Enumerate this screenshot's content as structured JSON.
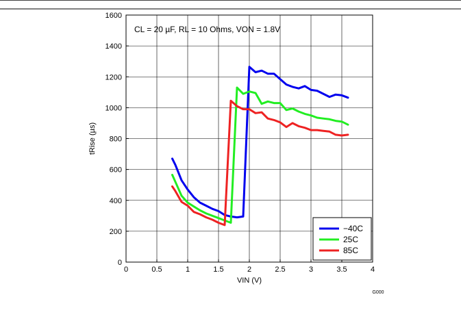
{
  "chart_data": {
    "type": "line",
    "title": "",
    "annotation": "CL = 20 µF, RL = 10 Ohms, VON = 1.8V",
    "xlabel": "VIN (V)",
    "ylabel": "tRise (µs)",
    "xlim": [
      0,
      4
    ],
    "ylim": [
      0,
      1600
    ],
    "xticks": [
      0,
      0.5,
      1,
      1.5,
      2,
      2.5,
      3,
      3.5,
      4
    ],
    "xtick_labels": [
      "0",
      "0.5",
      "1",
      "1.5",
      "2",
      "2.5",
      "3",
      "3.5",
      "4"
    ],
    "yticks": [
      0,
      200,
      400,
      600,
      800,
      1000,
      1200,
      1400,
      1600
    ],
    "ytick_labels": [
      "0",
      "200",
      "400",
      "600",
      "800",
      "1000",
      "1200",
      "1400",
      "1600"
    ],
    "grid": true,
    "legend_position": "bottom-right",
    "figure_code": "G000",
    "series": [
      {
        "name": "−40C",
        "color": "#0000ee",
        "x": [
          0.75,
          0.8,
          0.9,
          1.0,
          1.1,
          1.2,
          1.3,
          1.4,
          1.5,
          1.6,
          1.7,
          1.8,
          1.9,
          2.0,
          2.1,
          2.2,
          2.3,
          2.4,
          2.5,
          2.6,
          2.7,
          2.8,
          2.9,
          3.0,
          3.1,
          3.2,
          3.3,
          3.4,
          3.5,
          3.6
        ],
        "y": [
          670,
          630,
          530,
          470,
          420,
          385,
          365,
          345,
          330,
          305,
          295,
          290,
          295,
          1265,
          1230,
          1240,
          1220,
          1220,
          1185,
          1150,
          1135,
          1125,
          1140,
          1115,
          1110,
          1090,
          1070,
          1085,
          1080,
          1065
        ]
      },
      {
        "name": "25C",
        "color": "#22ee22",
        "x": [
          0.75,
          0.8,
          0.9,
          1.0,
          1.1,
          1.2,
          1.3,
          1.4,
          1.5,
          1.6,
          1.7,
          1.8,
          1.9,
          2.0,
          2.1,
          2.2,
          2.3,
          2.4,
          2.5,
          2.6,
          2.7,
          2.8,
          2.9,
          3.0,
          3.1,
          3.2,
          3.3,
          3.4,
          3.5,
          3.6
        ],
        "y": [
          565,
          520,
          430,
          385,
          360,
          335,
          315,
          300,
          285,
          270,
          255,
          1130,
          1090,
          1105,
          1095,
          1025,
          1040,
          1030,
          1030,
          985,
          995,
          975,
          960,
          950,
          935,
          930,
          925,
          915,
          910,
          890
        ]
      },
      {
        "name": "85C",
        "color": "#ee2222",
        "x": [
          0.75,
          0.8,
          0.9,
          1.0,
          1.1,
          1.2,
          1.3,
          1.4,
          1.5,
          1.6,
          1.7,
          1.8,
          1.9,
          2.0,
          2.1,
          2.2,
          2.3,
          2.4,
          2.5,
          2.6,
          2.7,
          2.8,
          2.9,
          3.0,
          3.1,
          3.2,
          3.3,
          3.4,
          3.5,
          3.6
        ],
        "y": [
          490,
          460,
          390,
          365,
          325,
          310,
          290,
          275,
          255,
          240,
          1045,
          1010,
          990,
          990,
          965,
          970,
          930,
          920,
          905,
          875,
          900,
          880,
          870,
          855,
          855,
          850,
          845,
          825,
          820,
          825
        ]
      }
    ]
  }
}
